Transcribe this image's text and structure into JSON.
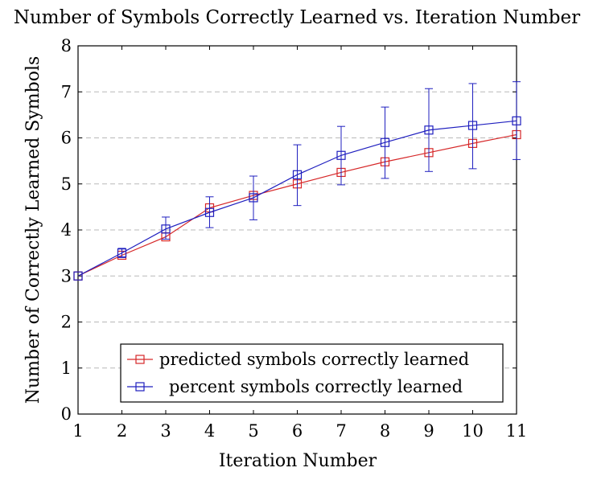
{
  "chart_data": {
    "type": "line",
    "title": "Number of Symbols Correctly Learned vs. Iteration Number",
    "xlabel": "Iteration Number",
    "ylabel": "Number of Correctly Learned Symbols",
    "xlim": [
      1,
      11
    ],
    "ylim": [
      0,
      8
    ],
    "x_ticks": [
      1,
      2,
      3,
      4,
      5,
      6,
      7,
      8,
      9,
      10,
      11
    ],
    "y_ticks": [
      0,
      1,
      2,
      3,
      4,
      5,
      6,
      7,
      8
    ],
    "grid": "horizontal-dashed",
    "legend_position": "bottom-right",
    "x": [
      1,
      2,
      3,
      4,
      5,
      6,
      7,
      8,
      9,
      10,
      11
    ],
    "series": [
      {
        "name": "predicted symbols correctly learned",
        "color": "#d62728",
        "marker": "square",
        "values": [
          3.0,
          3.45,
          3.85,
          4.48,
          4.75,
          5.0,
          5.25,
          5.48,
          5.68,
          5.88,
          6.07
        ]
      },
      {
        "name": "percent symbols correctly learned",
        "color": "#1f1fbf",
        "marker": "square",
        "values": [
          3.0,
          3.5,
          4.02,
          4.38,
          4.7,
          5.2,
          5.62,
          5.9,
          6.17,
          6.27,
          6.37
        ],
        "error_low": [
          3.0,
          3.4,
          3.8,
          4.05,
          4.22,
          4.53,
          4.98,
          5.12,
          5.27,
          5.33,
          5.53
        ],
        "error_high": [
          3.0,
          3.6,
          4.28,
          4.72,
          5.17,
          5.85,
          6.25,
          6.67,
          7.07,
          7.18,
          7.22
        ]
      }
    ]
  }
}
